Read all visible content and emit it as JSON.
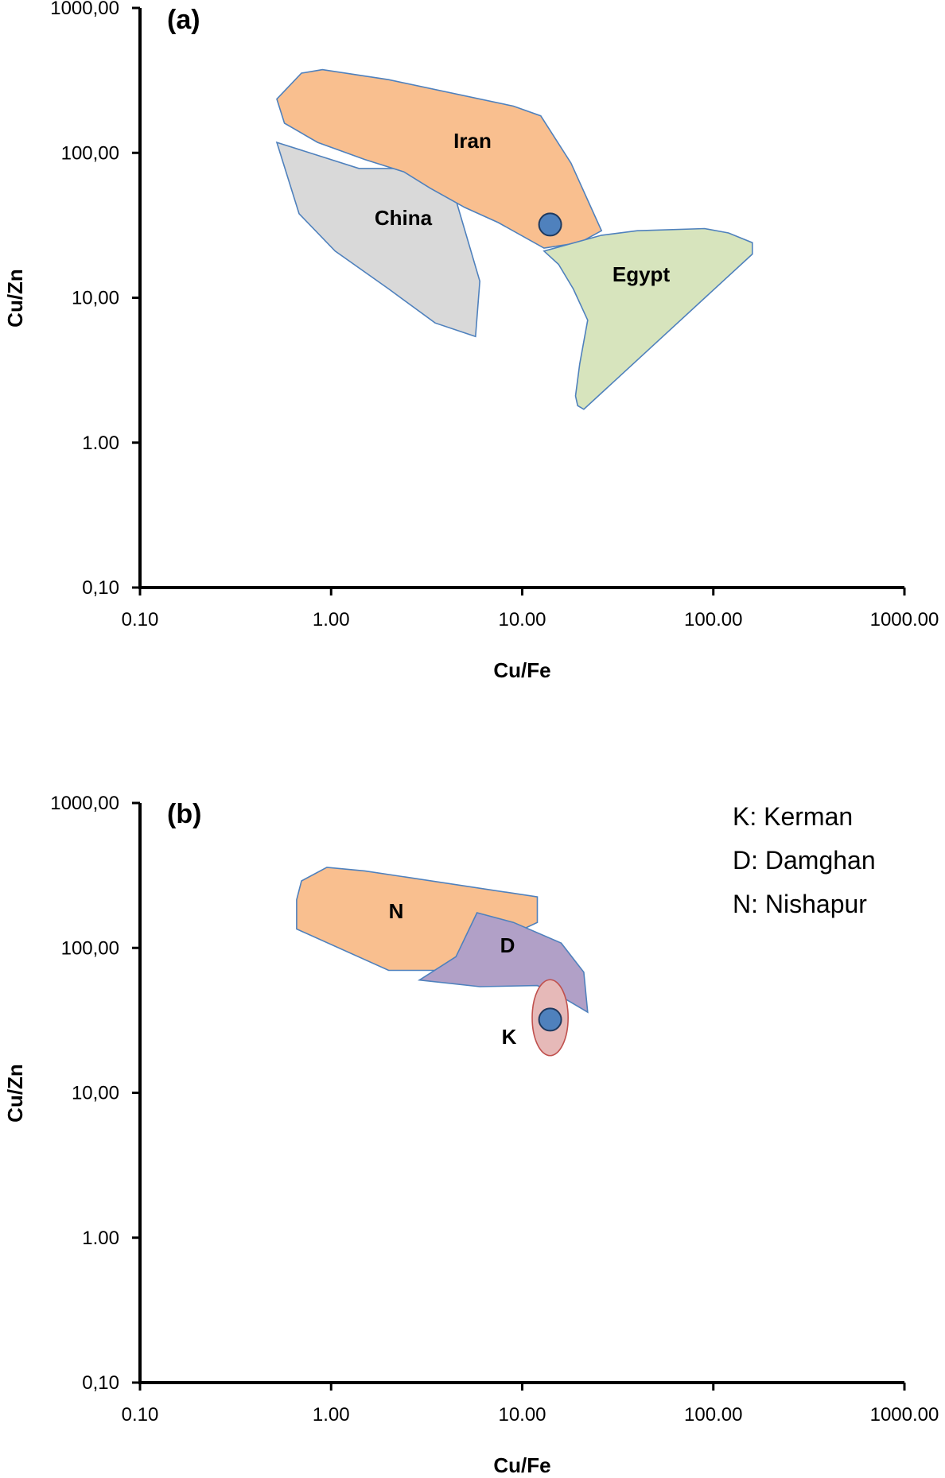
{
  "chart_data": [
    {
      "type": "scatter",
      "panel": "(a)",
      "xlabel": "Cu/Fe",
      "ylabel": "Cu/Zn",
      "xscale": "log",
      "yscale": "log",
      "xlim": [
        0.1,
        1000
      ],
      "ylim": [
        0.1,
        1000
      ],
      "x_ticks": [
        "0.10",
        "1.00",
        "10.00",
        "100.00",
        "1000.00"
      ],
      "y_ticks": [
        "0,10",
        "1.00",
        "10,00",
        "100,00",
        "1000,00"
      ],
      "grid": false,
      "regions": [
        {
          "name": "China",
          "label": "China",
          "fill": "#d9d9d9",
          "stroke": "#4f81bd",
          "polygon": [
            [
              0.52,
              118
            ],
            [
              1.4,
              78
            ],
            [
              2.6,
              78
            ],
            [
              4.3,
              58
            ],
            [
              6.0,
              13
            ],
            [
              5.7,
              5.4
            ],
            [
              3.5,
              6.7
            ],
            [
              2.0,
              11.5
            ],
            [
              1.05,
              21
            ],
            [
              0.68,
              38
            ]
          ]
        },
        {
          "name": "Iran",
          "label": "Iran",
          "fill": "#f9bf8f",
          "stroke": "#4f81bd",
          "polygon": [
            [
              0.52,
              235
            ],
            [
              0.7,
              355
            ],
            [
              0.9,
              375
            ],
            [
              2.0,
              320
            ],
            [
              9.0,
              210
            ],
            [
              12.5,
              180
            ],
            [
              18,
              85
            ],
            [
              26,
              29
            ],
            [
              20,
              24
            ],
            [
              13,
              22
            ],
            [
              7.5,
              33
            ],
            [
              5.0,
              42
            ],
            [
              3.3,
              57
            ],
            [
              2.4,
              74
            ],
            [
              1.5,
              90
            ],
            [
              0.85,
              118
            ],
            [
              0.57,
              160
            ]
          ]
        },
        {
          "name": "Egypt",
          "label": "Egypt",
          "fill": "#d7e4bd",
          "stroke": "#4f81bd",
          "polygon": [
            [
              13,
              21
            ],
            [
              26,
              27
            ],
            [
              40,
              29
            ],
            [
              90,
              30
            ],
            [
              120,
              28
            ],
            [
              160,
              24
            ],
            [
              160,
              20
            ],
            [
              21,
              1.7
            ],
            [
              19.5,
              1.8
            ],
            [
              19,
              2.1
            ],
            [
              20,
              3.5
            ],
            [
              22,
              7
            ],
            [
              18.5,
              11.5
            ],
            [
              15.5,
              17
            ]
          ]
        }
      ],
      "points": [
        {
          "x": 14,
          "y": 32,
          "color": "#4f81bd"
        }
      ]
    },
    {
      "type": "scatter",
      "panel": "(b)",
      "xlabel": "Cu/Fe",
      "ylabel": "Cu/Zn",
      "xscale": "log",
      "yscale": "log",
      "xlim": [
        0.1,
        1000
      ],
      "ylim": [
        0.1,
        1000
      ],
      "x_ticks": [
        "0.10",
        "1.00",
        "10.00",
        "100.00",
        "1000.00"
      ],
      "y_ticks": [
        "0,10",
        "1.00",
        "10,00",
        "100,00",
        "1000,00"
      ],
      "grid": false,
      "legend": {
        "position": "top-right",
        "items": [
          "K: Kerman",
          "D: Damghan",
          "N: Nishapur"
        ]
      },
      "regions": [
        {
          "name": "Nishapur",
          "label": "N",
          "fill": "#f9bf8f",
          "stroke": "#4f81bd",
          "polygon": [
            [
              0.7,
              290
            ],
            [
              0.95,
              360
            ],
            [
              1.5,
              340
            ],
            [
              12,
              225
            ],
            [
              12,
              150
            ],
            [
              3.5,
              70
            ],
            [
              2.0,
              70
            ],
            [
              0.66,
              135
            ],
            [
              0.66,
              215
            ]
          ]
        },
        {
          "name": "Damghan",
          "label": "D",
          "fill": "#b1a0c7",
          "stroke": "#4f81bd",
          "polygon": [
            [
              5.8,
              175
            ],
            [
              9,
              150
            ],
            [
              16,
              108
            ],
            [
              21,
              68
            ],
            [
              22,
              36
            ],
            [
              17,
              44
            ],
            [
              12,
              55
            ],
            [
              6,
              54
            ],
            [
              2.9,
              60
            ],
            [
              4.5,
              87
            ]
          ]
        },
        {
          "name": "Kerman",
          "label": "K",
          "fill": "#e6b9b8",
          "stroke": "#c0504d",
          "ellipse": {
            "cx": 14,
            "cy": 33,
            "rx_dec": 0.094,
            "ry_dec": 0.262
          }
        }
      ],
      "points": [
        {
          "x": 14,
          "y": 32,
          "color": "#4f81bd"
        }
      ]
    }
  ]
}
